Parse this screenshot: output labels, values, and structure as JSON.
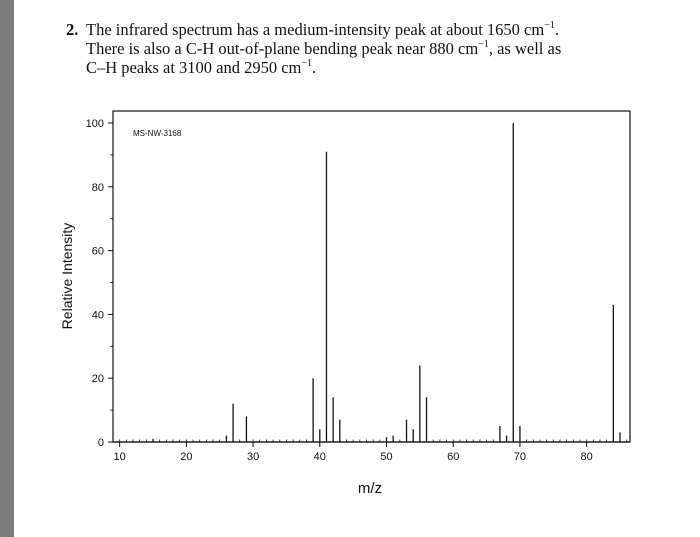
{
  "problem": {
    "number": "2.",
    "line1": "The infrared spectrum has a medium-intensity peak at about 1650 cm",
    "line2a": "There is also a C-H out-of-plane bending peak near 880 cm",
    "line2b": ", as well as",
    "line3": "C–H peaks at 3100 and 2950 cm",
    "sup": "−1",
    "end": "."
  },
  "chart_data": {
    "type": "bar",
    "title": "",
    "watermark_id": "MS-NW-3168",
    "xlabel": "m/z",
    "ylabel": "Relative Intensity",
    "xlim": [
      9,
      86.5
    ],
    "ylim": [
      0,
      102
    ],
    "xticks": [
      10,
      20,
      30,
      40,
      50,
      60,
      70,
      80
    ],
    "yticks": [
      0,
      20,
      40,
      60,
      80,
      100
    ],
    "peaks": [
      {
        "mz": 15,
        "intensity": 1
      },
      {
        "mz": 26,
        "intensity": 2
      },
      {
        "mz": 27,
        "intensity": 12
      },
      {
        "mz": 29,
        "intensity": 8
      },
      {
        "mz": 39,
        "intensity": 20
      },
      {
        "mz": 40,
        "intensity": 4
      },
      {
        "mz": 41,
        "intensity": 91
      },
      {
        "mz": 42,
        "intensity": 14
      },
      {
        "mz": 43,
        "intensity": 7
      },
      {
        "mz": 50,
        "intensity": 1.5
      },
      {
        "mz": 51,
        "intensity": 2
      },
      {
        "mz": 53,
        "intensity": 7
      },
      {
        "mz": 54,
        "intensity": 4
      },
      {
        "mz": 55,
        "intensity": 24
      },
      {
        "mz": 56,
        "intensity": 14
      },
      {
        "mz": 67,
        "intensity": 5
      },
      {
        "mz": 68,
        "intensity": 2
      },
      {
        "mz": 69,
        "intensity": 100
      },
      {
        "mz": 70,
        "intensity": 5
      },
      {
        "mz": 84,
        "intensity": 43
      },
      {
        "mz": 85,
        "intensity": 3
      }
    ]
  }
}
